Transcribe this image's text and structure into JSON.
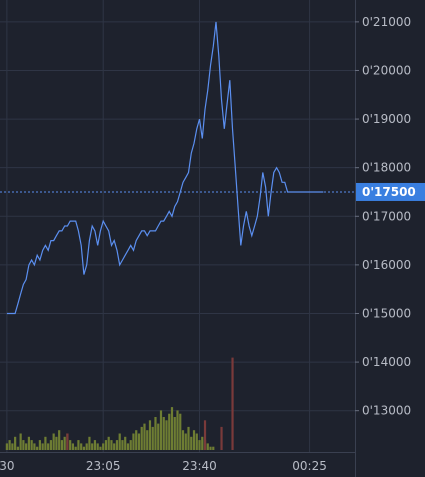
{
  "chart_data": {
    "type": "line",
    "x_ticks": [
      "30",
      "23:05",
      "23:40",
      "00:25"
    ],
    "y_ticks": [
      "0'13000",
      "0'14000",
      "0'15000",
      "0'16000",
      "0'17000",
      "0'18000",
      "0'19000",
      "0'20000",
      "0'21000"
    ],
    "y_tick_values": [
      0.13,
      0.14,
      0.15,
      0.16,
      0.17,
      0.18,
      0.19,
      0.2,
      0.21
    ],
    "current_price_label": "0'17500",
    "current_price": 0.175,
    "ylim": [
      0.1215,
      0.2145
    ],
    "x_tick_positions": [
      0.0,
      35.0,
      70.0,
      110.0
    ],
    "xlim": [
      -2.5,
      126.5
    ],
    "grid": true,
    "colors": {
      "line": "#5b8ff0",
      "current_tag": "#3a7fe0",
      "vol_up": "#6e7d33",
      "vol_down": "#7a3a3a",
      "grid": "#2f3545"
    },
    "series": [
      {
        "x": [
          0,
          3,
          4,
          5,
          6,
          7,
          8,
          9,
          10,
          11,
          12,
          13,
          14,
          15,
          16,
          17,
          18,
          19,
          20,
          21,
          22,
          23,
          24,
          25,
          26,
          27,
          28,
          29,
          30,
          31,
          32,
          33,
          34,
          35,
          36,
          37,
          38,
          39,
          40,
          41,
          42,
          43,
          44,
          45,
          46,
          47,
          48,
          49,
          50,
          51,
          52,
          53,
          54,
          55,
          56,
          57,
          58,
          59,
          60,
          61,
          62,
          63,
          64,
          65,
          66,
          67,
          68,
          69,
          70,
          71,
          72,
          73,
          74,
          75,
          76,
          77,
          78,
          79,
          80,
          81,
          82,
          83,
          84,
          85,
          86,
          87,
          88,
          89,
          90,
          91,
          92,
          93,
          94,
          95,
          96,
          97,
          98,
          99,
          100,
          101,
          102,
          103,
          104,
          105,
          106,
          107,
          108,
          109,
          110,
          111,
          112,
          113,
          114,
          115
        ],
        "values": [
          0.15,
          0.15,
          0.152,
          0.154,
          0.156,
          0.157,
          0.16,
          0.161,
          0.16,
          0.162,
          0.161,
          0.163,
          0.164,
          0.163,
          0.165,
          0.165,
          0.166,
          0.167,
          0.167,
          0.168,
          0.168,
          0.169,
          0.169,
          0.169,
          0.167,
          0.164,
          0.158,
          0.16,
          0.165,
          0.168,
          0.167,
          0.164,
          0.167,
          0.169,
          0.168,
          0.167,
          0.164,
          0.165,
          0.163,
          0.16,
          0.161,
          0.162,
          0.163,
          0.164,
          0.163,
          0.165,
          0.166,
          0.167,
          0.167,
          0.166,
          0.167,
          0.167,
          0.167,
          0.168,
          0.169,
          0.169,
          0.17,
          0.171,
          0.17,
          0.172,
          0.173,
          0.175,
          0.177,
          0.178,
          0.179,
          0.183,
          0.185,
          0.188,
          0.19,
          0.186,
          0.192,
          0.196,
          0.201,
          0.205,
          0.21,
          0.203,
          0.194,
          0.188,
          0.193,
          0.198,
          0.188,
          0.18,
          0.172,
          0.164,
          0.168,
          0.171,
          0.168,
          0.166,
          0.168,
          0.17,
          0.174,
          0.179,
          0.176,
          0.17,
          0.175,
          0.179,
          0.18,
          0.179,
          0.177,
          0.177,
          0.175,
          0.175,
          0.175,
          0.175,
          0.175,
          0.175,
          0.175,
          0.175,
          0.175,
          0.175,
          0.175,
          0.175,
          0.175,
          0.175
        ],
        "name": ""
      }
    ],
    "volume": {
      "up": [
        2,
        3,
        2,
        4,
        1,
        5,
        3,
        2,
        4,
        3,
        2,
        1,
        3,
        2,
        4,
        2,
        3,
        5,
        4,
        6,
        3,
        4,
        5,
        3,
        2,
        1,
        3,
        2,
        1,
        2,
        4,
        2,
        3,
        2,
        1,
        2,
        3,
        4,
        3,
        2,
        3,
        5,
        3,
        4,
        2,
        3,
        5,
        6,
        5,
        7,
        8,
        6,
        9,
        7,
        10,
        8,
        12,
        10,
        9,
        11,
        13,
        10,
        12,
        11,
        6,
        5,
        7,
        4,
        6,
        5,
        3,
        4,
        3,
        2,
        1,
        1,
        0,
        0,
        0,
        0,
        0,
        0,
        0,
        0,
        0,
        0,
        0,
        0,
        0,
        0,
        0,
        0,
        0,
        0,
        0,
        0,
        0,
        0,
        0,
        0,
        0,
        0,
        0,
        0,
        0,
        0,
        0,
        0,
        0,
        0,
        0,
        0,
        0,
        0
      ],
      "down": [
        0,
        0,
        0,
        0,
        0,
        0,
        0,
        0,
        0,
        0,
        0,
        0,
        0,
        0,
        0,
        0,
        0,
        0,
        0,
        0,
        0,
        0,
        5,
        0,
        0,
        0,
        0,
        0,
        0,
        0,
        0,
        0,
        0,
        0,
        0,
        0,
        0,
        0,
        0,
        0,
        0,
        0,
        0,
        0,
        0,
        0,
        0,
        0,
        0,
        0,
        0,
        0,
        0,
        0,
        0,
        0,
        0,
        0,
        0,
        0,
        0,
        0,
        0,
        0,
        0,
        0,
        0,
        0,
        0,
        0,
        0,
        0,
        9,
        0,
        0,
        0,
        0,
        0,
        7,
        0,
        0,
        0,
        28,
        0,
        0,
        0,
        0,
        0,
        0,
        0,
        0,
        0,
        0,
        0,
        0,
        0,
        0,
        0,
        0,
        0,
        0,
        0,
        0,
        0,
        0,
        0,
        0,
        0,
        0,
        0,
        0,
        0,
        0,
        0
      ]
    }
  }
}
